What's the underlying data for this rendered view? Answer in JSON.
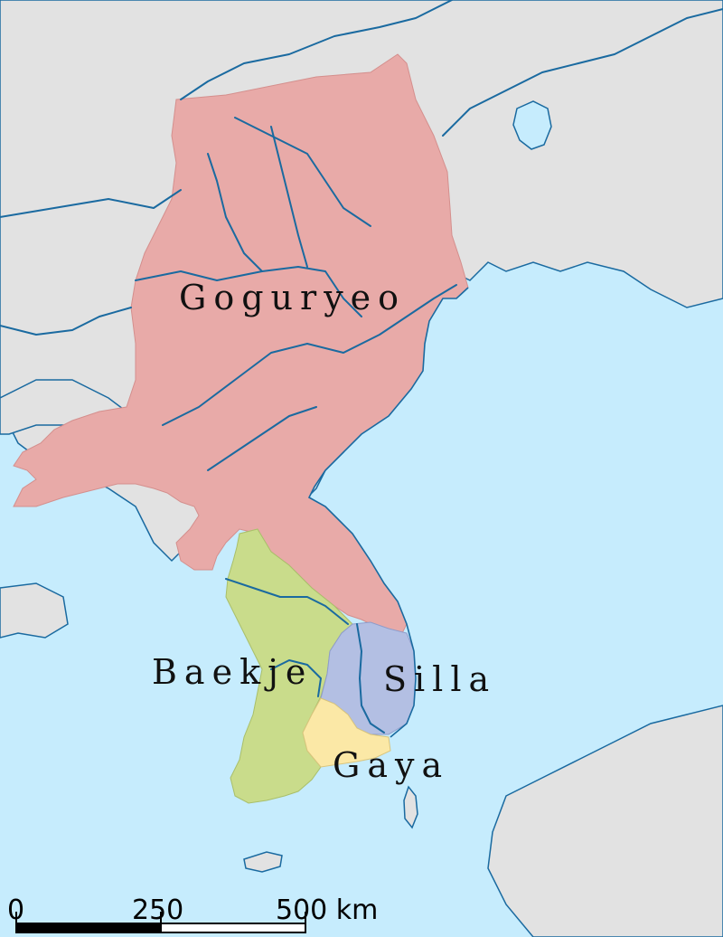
{
  "colors": {
    "sea": "#c6ecfd",
    "land": "#e2e2e2",
    "goguryeo": "#e8aaa8",
    "baekje": "#c9dc8b",
    "silla": "#b3bfe3",
    "gaya": "#fbe8a6",
    "river": "#1a6aa0"
  },
  "kingdoms": [
    {
      "id": "goguryeo",
      "label": "Goguryeo"
    },
    {
      "id": "baekje",
      "label": "Baekje"
    },
    {
      "id": "silla",
      "label": "Silla"
    },
    {
      "id": "gaya",
      "label": "Gaya"
    }
  ],
  "scale_bar": {
    "labels": [
      "0",
      "250",
      "500 km"
    ]
  }
}
